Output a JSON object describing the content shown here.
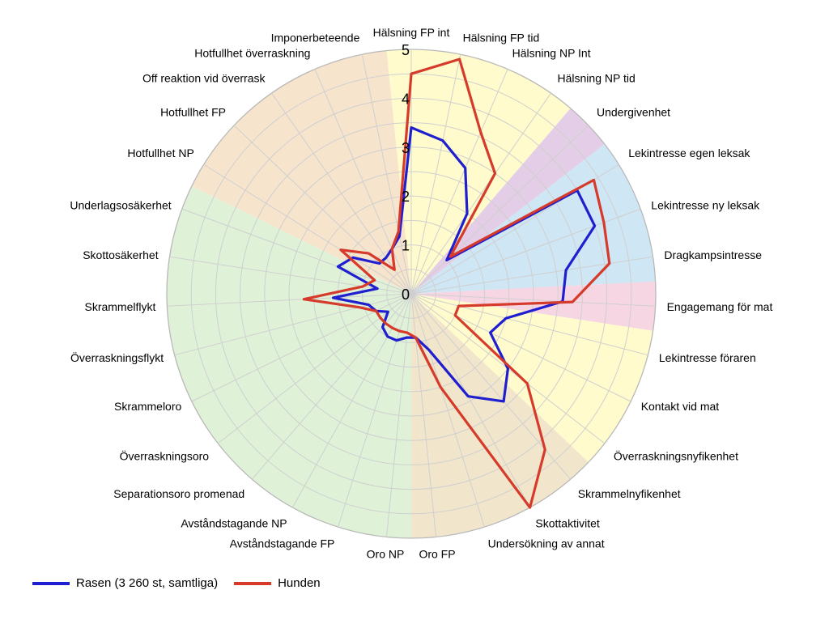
{
  "chart_data": {
    "type": "radar",
    "rmax": 5,
    "ticks": [
      "0",
      "1",
      "2",
      "3",
      "4",
      "5"
    ],
    "categories": [
      "Hälsning FP int",
      "Hälsning FP tid",
      "Hälsning NP Int",
      "Hälsning NP tid",
      "Undergivenhet",
      "Lekintresse egen leksak",
      "Lekintresse ny leksak",
      "Dragkampsintresse",
      "Engagemang för mat",
      "Lekintresse föraren",
      "Kontakt vid mat",
      "Överraskningsnyfikenhet",
      "Skrammelnyfikenhet",
      "Skottaktivitet",
      "Undersökning av annat",
      "Oro FP",
      "Oro NP",
      "Avståndstagande FP",
      "Avståndstagande NP",
      "Separationsoro promenad",
      "Överraskningsoro",
      "Skrammeloro",
      "Överraskningsflykt",
      "Skrammelflykt",
      "Skottosäkerhet",
      "Underlagsosäkerhet",
      "Hotfullhet NP",
      "Hotfullhet FP",
      "Off reaktion vid överrask",
      "Hotfullhet överraskning",
      "Imponerbeteende"
    ],
    "series": [
      {
        "name": "Rasen (3 260 st, samtliga)",
        "color": "#1f1fd0",
        "values": [
          3.4,
          3.2,
          2.8,
          2.0,
          1.0,
          4.0,
          4.0,
          3.2,
          3.1,
          2.0,
          1.8,
          2.5,
          2.9,
          2.4,
          1.2,
          0.9,
          0.9,
          1.0,
          1.0,
          0.9,
          0.6,
          0.8,
          0.9,
          1.6,
          0.7,
          1.6,
          1.4,
          0.9,
          0.9,
          1.0,
          1.2
        ]
      },
      {
        "name": "Hunden",
        "color": "#d63a2a",
        "values": [
          4.5,
          4.9,
          3.6,
          3.0,
          1.1,
          4.4,
          4.2,
          4.1,
          3.3,
          1.0,
          1.0,
          3.0,
          4.2,
          5.0,
          2.0,
          0.9,
          0.8,
          0.8,
          0.8,
          0.8,
          0.8,
          0.8,
          1.1,
          2.2,
          1.0,
          0.8,
          1.7,
          1.2,
          0.6,
          1.0,
          1.3
        ]
      }
    ],
    "sectors": [
      {
        "from": 0,
        "to": 3,
        "color": "#fffbcc"
      },
      {
        "from": 4,
        "to": 4,
        "color": "#e4cde6"
      },
      {
        "from": 5,
        "to": 7,
        "color": "#cfe6f4"
      },
      {
        "from": 8,
        "to": 8,
        "color": "#f7d6e4"
      },
      {
        "from": 9,
        "to": 11,
        "color": "#fffbcc"
      },
      {
        "from": 12,
        "to": 15,
        "color": "#f1e6cb"
      },
      {
        "from": 16,
        "to": 25,
        "color": "#dff2d8"
      },
      {
        "from": 26,
        "to": 30,
        "color": "#f6e4cd"
      }
    ],
    "grid": true,
    "legend_position": "bottom-left"
  },
  "legend": [
    {
      "label": "Rasen (3 260 st, samtliga)",
      "color": "#1f1fd0"
    },
    {
      "label": "Hunden",
      "color": "#d63a2a"
    }
  ]
}
